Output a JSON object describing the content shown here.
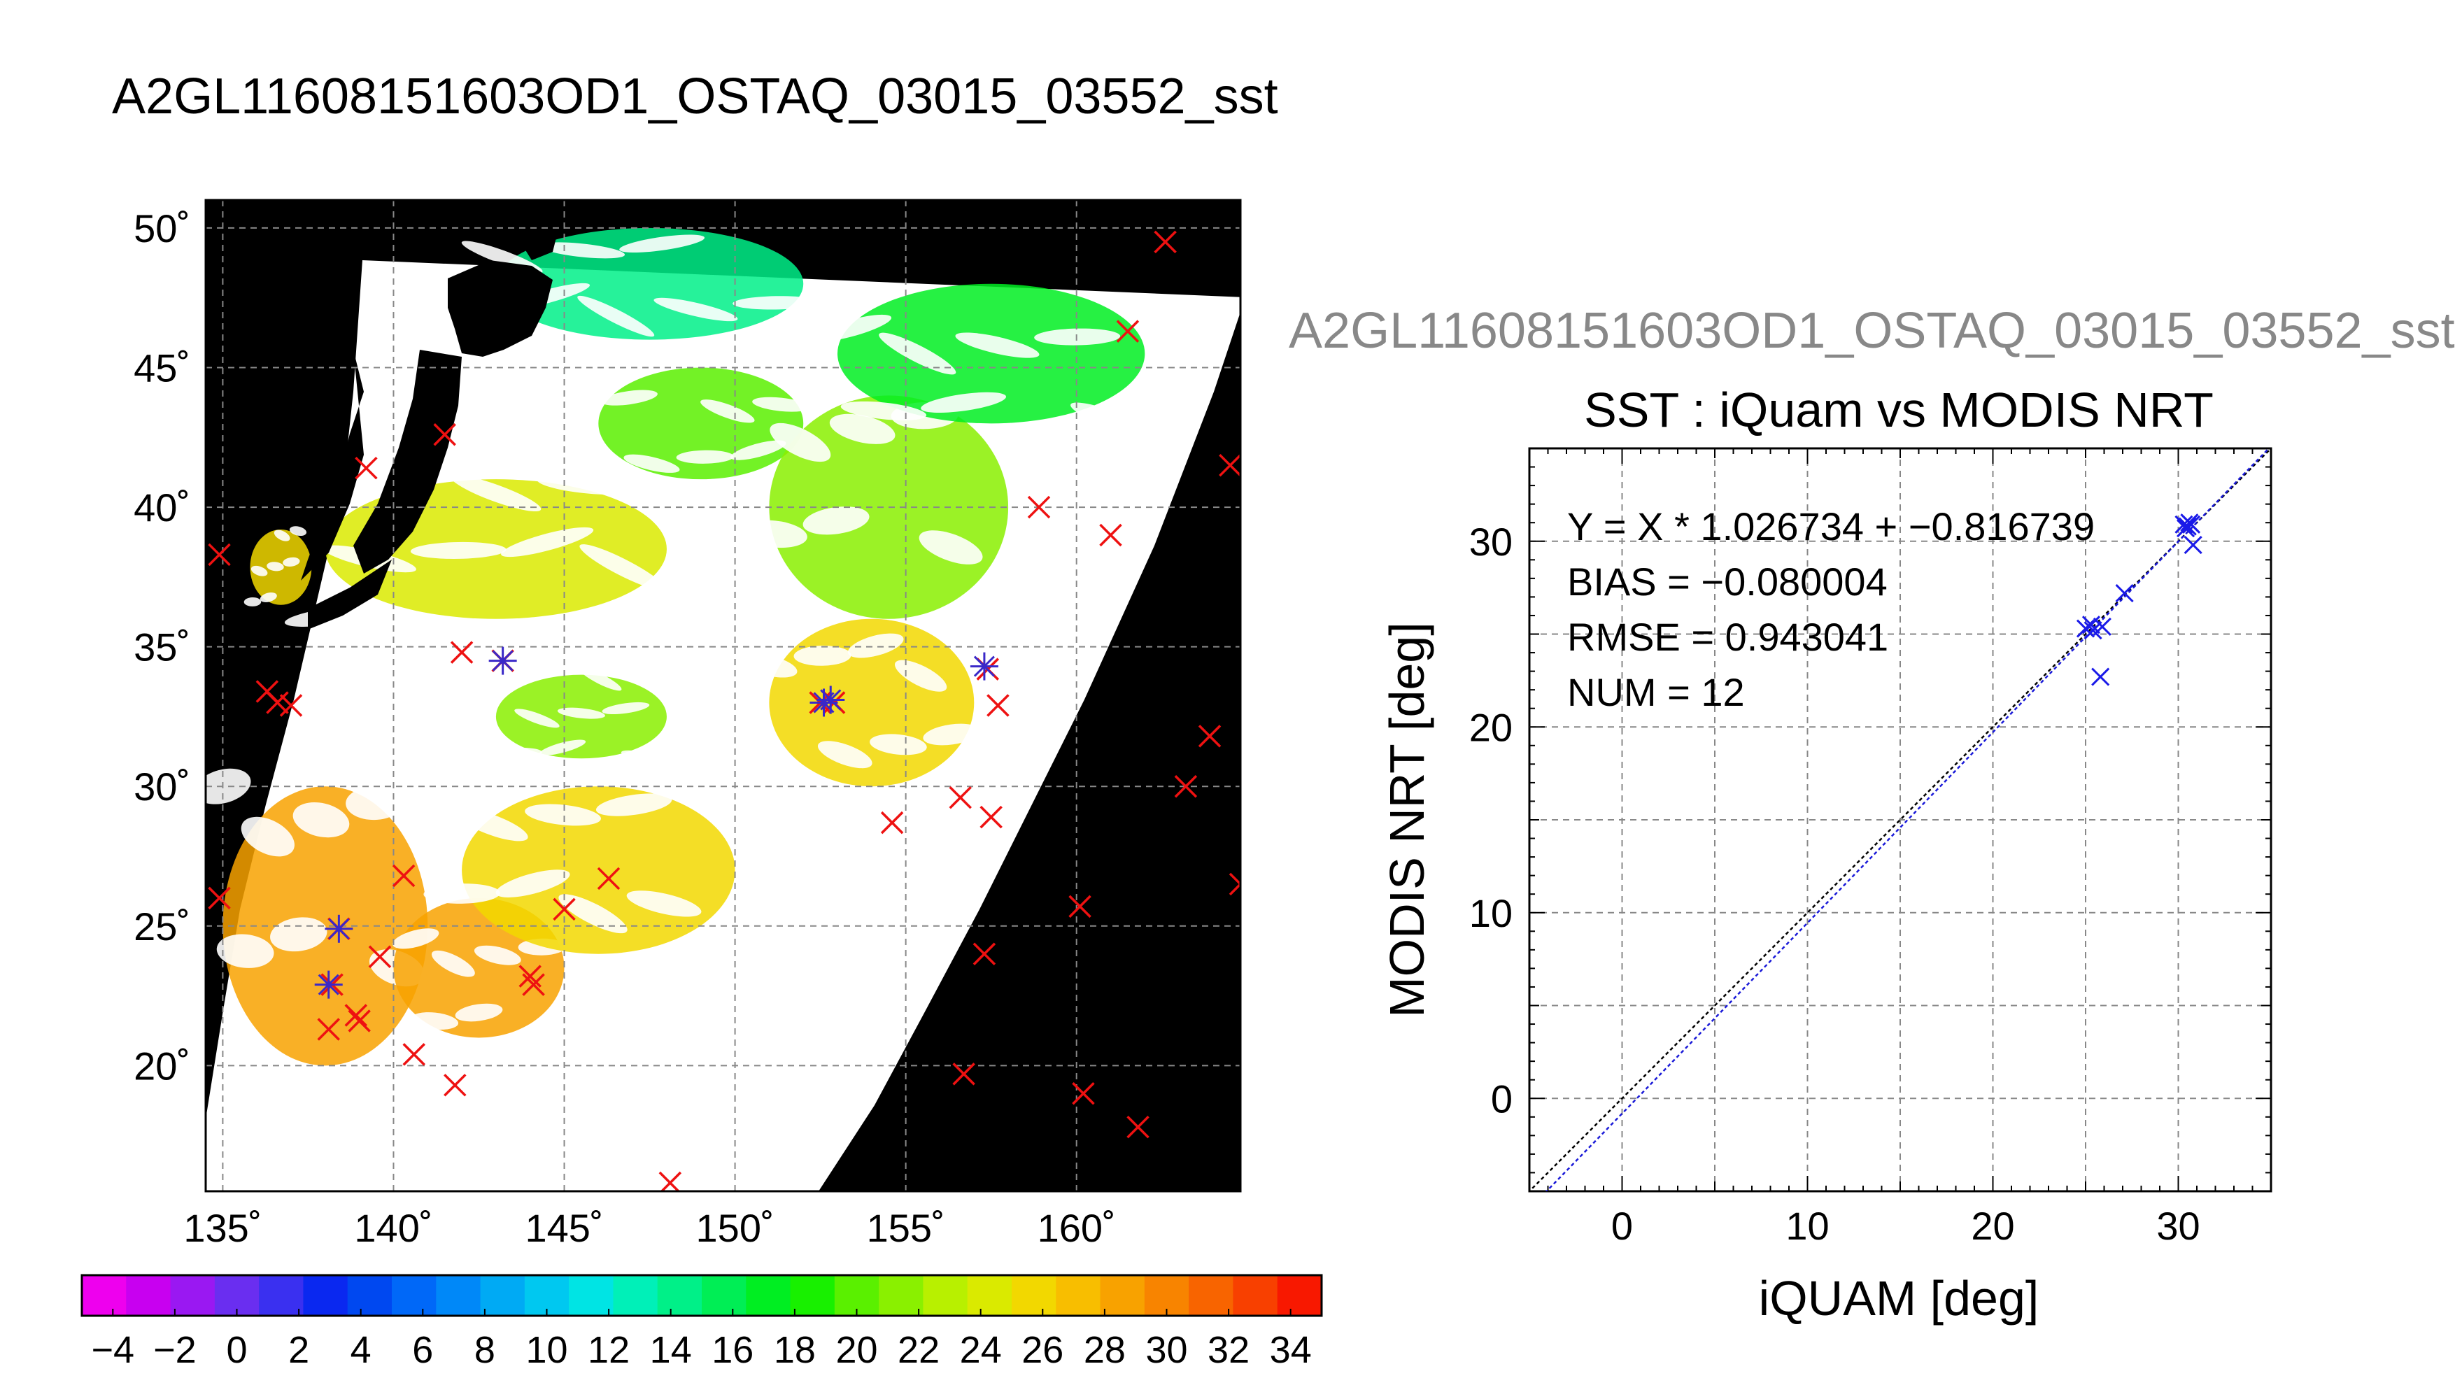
{
  "page_title": "A2GL11608151603OD1_OSTAQ_03015_03552_sst",
  "map": {
    "title": "A2GL11608151603OD1_OSTAQ_03015_03552_sst",
    "lat_ticks": [
      20,
      25,
      30,
      35,
      40,
      45,
      50
    ],
    "lon_ticks": [
      135,
      140,
      145,
      150,
      155,
      160
    ],
    "lat_range": [
      15.5,
      51
    ],
    "lon_range": [
      134.5,
      164.8
    ],
    "degree_symbol": "˚",
    "colorbar": {
      "ticks": [
        -4,
        -2,
        0,
        2,
        4,
        6,
        8,
        10,
        12,
        14,
        16,
        18,
        20,
        22,
        24,
        26,
        28,
        30,
        32,
        34
      ],
      "range": [
        -5,
        35
      ],
      "colors": [
        "#ee00ee",
        "#c800f0",
        "#9a18f2",
        "#6a2ef0",
        "#3a30f0",
        "#0a28f0",
        "#0048f0",
        "#0068f8",
        "#0088f8",
        "#00aaf4",
        "#00c8f0",
        "#00e4e4",
        "#00f0b8",
        "#00f088",
        "#00ee55",
        "#00ee22",
        "#18f000",
        "#5af000",
        "#8af000",
        "#b8f000",
        "#daea00",
        "#f2d800",
        "#f8be00",
        "#f8a200",
        "#f88400",
        "#f86400",
        "#f84000",
        "#f81800"
      ],
      "minus_sign": "−"
    },
    "insitu_markers": [
      {
        "lon": 134.9,
        "lat": 38.3
      },
      {
        "lon": 136.3,
        "lat": 33.4
      },
      {
        "lon": 136.6,
        "lat": 33.0
      },
      {
        "lon": 137.0,
        "lat": 32.9
      },
      {
        "lon": 134.9,
        "lat": 26.0
      },
      {
        "lon": 138.4,
        "lat": 24.9
      },
      {
        "lon": 138.2,
        "lat": 22.9
      },
      {
        "lon": 138.1,
        "lat": 21.3
      },
      {
        "lon": 138.9,
        "lat": 21.8
      },
      {
        "lon": 139.0,
        "lat": 21.6
      },
      {
        "lon": 139.6,
        "lat": 23.9
      },
      {
        "lon": 140.3,
        "lat": 26.8
      },
      {
        "lon": 140.6,
        "lat": 20.4
      },
      {
        "lon": 141.8,
        "lat": 19.3
      },
      {
        "lon": 139.2,
        "lat": 41.4
      },
      {
        "lon": 141.5,
        "lat": 42.6
      },
      {
        "lon": 142.0,
        "lat": 34.8
      },
      {
        "lon": 143.2,
        "lat": 34.5
      },
      {
        "lon": 144.0,
        "lat": 23.2
      },
      {
        "lon": 144.1,
        "lat": 22.9
      },
      {
        "lon": 145.0,
        "lat": 25.6
      },
      {
        "lon": 146.3,
        "lat": 26.7
      },
      {
        "lon": 148.1,
        "lat": 15.8
      },
      {
        "lon": 152.5,
        "lat": 33.0
      },
      {
        "lon": 152.9,
        "lat": 33.0
      },
      {
        "lon": 154.6,
        "lat": 28.7
      },
      {
        "lon": 156.6,
        "lat": 29.6
      },
      {
        "lon": 157.4,
        "lat": 34.2
      },
      {
        "lon": 157.7,
        "lat": 32.9
      },
      {
        "lon": 157.5,
        "lat": 28.9
      },
      {
        "lon": 157.3,
        "lat": 24.0
      },
      {
        "lon": 156.7,
        "lat": 19.7
      },
      {
        "lon": 158.9,
        "lat": 40.0
      },
      {
        "lon": 160.1,
        "lat": 25.7
      },
      {
        "lon": 160.2,
        "lat": 19.0
      },
      {
        "lon": 161.0,
        "lat": 39.0
      },
      {
        "lon": 161.5,
        "lat": 46.3
      },
      {
        "lon": 161.8,
        "lat": 17.8
      },
      {
        "lon": 162.6,
        "lat": 49.5
      },
      {
        "lon": 163.2,
        "lat": 30.0
      },
      {
        "lon": 163.9,
        "lat": 31.8
      },
      {
        "lon": 164.5,
        "lat": 41.5
      },
      {
        "lon": 164.8,
        "lat": 26.5
      }
    ],
    "matchup_markers": [
      {
        "lon": 138.4,
        "lat": 24.9
      },
      {
        "lon": 138.1,
        "lat": 22.9
      },
      {
        "lon": 143.2,
        "lat": 34.5
      },
      {
        "lon": 152.6,
        "lat": 33.0
      },
      {
        "lon": 152.8,
        "lat": 33.1
      },
      {
        "lon": 157.3,
        "lat": 34.3
      }
    ]
  },
  "scatter": {
    "figure_label": "A2GL11608151603OD1_OSTAQ_03015_03552_sst",
    "title": "SST : iQuam vs MODIS NRT",
    "xlabel": "iQUAM [deg]",
    "ylabel": "MODIS NRT [deg]",
    "x_ticks": [
      0,
      10,
      20,
      30
    ],
    "y_ticks": [
      0,
      10,
      20,
      30
    ],
    "stats": {
      "equation": "Y = X * 1.026734 + −0.816739",
      "bias": "BIAS = −0.080004",
      "rmse": "RMSE = 0.943041",
      "num": "NUM = 12"
    }
  },
  "chart_data": [
    {
      "type": "heatmap",
      "title": "A2GL11608151603OD1_OSTAQ_03015_03552_sst",
      "xlabel": "",
      "ylabel": "",
      "xlim": [
        134.5,
        164.8
      ],
      "ylim": [
        15.5,
        51
      ],
      "x_ticks": [
        "135˚",
        "140˚",
        "145˚",
        "150˚",
        "155˚",
        "160˚"
      ],
      "y_ticks": [
        "20˚",
        "25˚",
        "30˚",
        "35˚",
        "40˚",
        "45˚",
        "50˚"
      ],
      "colorbar_range": [
        -5,
        35
      ],
      "grid": true,
      "regions": [
        {
          "lon": [
            135.0,
            141.0
          ],
          "lat": [
            20.0,
            30.0
          ],
          "value": 29
        },
        {
          "lon": [
            140.0,
            145.0
          ],
          "lat": [
            21.0,
            26.0
          ],
          "value": 29
        },
        {
          "lon": [
            142.0,
            150.0
          ],
          "lat": [
            24.0,
            30.0
          ],
          "value": 25
        },
        {
          "lon": [
            143.0,
            148.0
          ],
          "lat": [
            31.0,
            34.0
          ],
          "value": 22
        },
        {
          "lon": [
            151.0,
            157.0
          ],
          "lat": [
            30.0,
            36.0
          ],
          "value": 25
        },
        {
          "lon": [
            138.0,
            148.0
          ],
          "lat": [
            36.0,
            41.0
          ],
          "value": 24
        },
        {
          "lon": [
            146.0,
            152.0
          ],
          "lat": [
            41.0,
            45.0
          ],
          "value": 20
        },
        {
          "lon": [
            151.0,
            158.0
          ],
          "lat": [
            36.0,
            44.0
          ],
          "value": 22
        },
        {
          "lon": [
            153.0,
            162.0
          ],
          "lat": [
            43.0,
            48.0
          ],
          "value": 17
        },
        {
          "lon": [
            143.0,
            152.0
          ],
          "lat": [
            46.0,
            50.0
          ],
          "value": 14
        },
        {
          "lon": [
            135.8,
            137.6
          ],
          "lat": [
            36.5,
            39.2
          ],
          "value": 26
        }
      ]
    },
    {
      "type": "scatter",
      "title": "SST : iQuam vs MODIS NRT",
      "xlabel": "iQUAM [deg]",
      "ylabel": "MODIS NRT [deg]",
      "xlim": [
        -5,
        35
      ],
      "ylim": [
        -5,
        35
      ],
      "grid": true,
      "points": [
        {
          "x": 30.3,
          "y": 30.9
        },
        {
          "x": 30.5,
          "y": 30.8
        },
        {
          "x": 30.7,
          "y": 30.9
        },
        {
          "x": 30.8,
          "y": 29.8
        },
        {
          "x": 27.1,
          "y": 27.2
        },
        {
          "x": 25.9,
          "y": 25.4
        },
        {
          "x": 25.4,
          "y": 25.2
        },
        {
          "x": 25.0,
          "y": 25.3
        },
        {
          "x": 25.8,
          "y": 22.7
        },
        {
          "x": 25.3,
          "y": 25.5
        },
        {
          "x": 30.4,
          "y": 30.7
        },
        {
          "x": 30.6,
          "y": 31.0
        }
      ],
      "lines": [
        {
          "slope": 1.0,
          "intercept": 0.0
        },
        {
          "slope": 1.026734,
          "intercept": -0.816739
        }
      ]
    }
  ]
}
